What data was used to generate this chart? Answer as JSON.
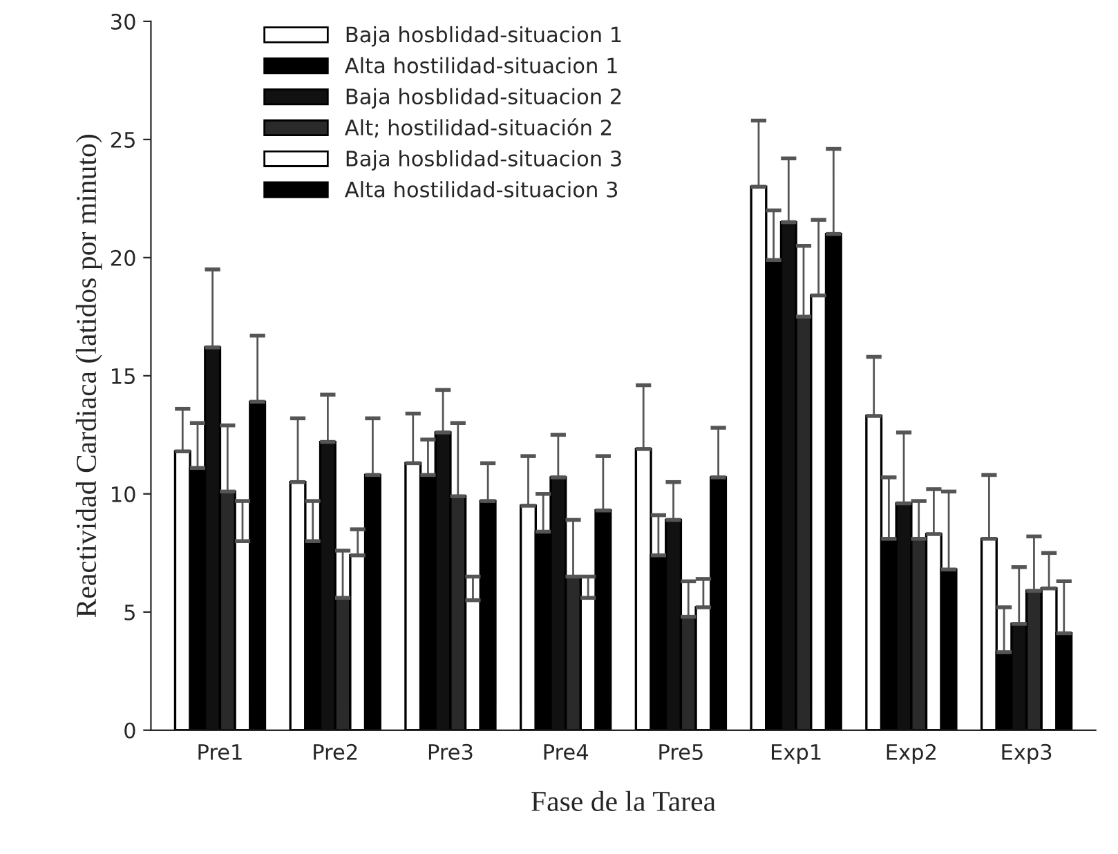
{
  "chart_data": {
    "type": "bar",
    "xlabel": "Fase de la Tarea",
    "ylabel": "Reactividad Cardiaca (latidos por minuto)",
    "categories": [
      "Pre1",
      "Pre2",
      "Pre3",
      "Pre4",
      "Pre5",
      "Exp1",
      "Exp2",
      "Exp3"
    ],
    "ylim": [
      0,
      30
    ],
    "yticks": [
      0,
      5,
      10,
      15,
      20,
      25,
      30
    ],
    "grid": false,
    "legend": "top left",
    "series": [
      {
        "name": "Baja hosblidad-situacion 1",
        "color": "#ffffff",
        "values": [
          11.8,
          10.5,
          11.3,
          9.5,
          11.9,
          23.0,
          13.3,
          8.1
        ],
        "errors": [
          [
            11.8,
            13.6
          ],
          [
            10.5,
            13.2
          ],
          [
            11.3,
            13.4
          ],
          [
            9.5,
            11.6
          ],
          [
            11.9,
            14.6
          ],
          [
            23.0,
            25.8
          ],
          [
            13.3,
            15.8
          ],
          [
            8.1,
            10.8
          ]
        ]
      },
      {
        "name": "Alta hostilidad-situacion 1",
        "color": "#000000",
        "values": [
          11.1,
          8.0,
          10.8,
          8.4,
          7.4,
          19.9,
          8.1,
          3.3
        ],
        "errors": [
          [
            11.1,
            13.0
          ],
          [
            8.0,
            9.7
          ],
          [
            10.8,
            12.3
          ],
          [
            8.4,
            10.0
          ],
          [
            7.4,
            9.1
          ],
          [
            19.9,
            22.0
          ],
          [
            8.1,
            10.7
          ],
          [
            3.3,
            5.2
          ]
        ]
      },
      {
        "name": "Baja hosblidad-situacion 2",
        "color": "#111111",
        "values": [
          16.2,
          12.2,
          12.6,
          10.7,
          8.9,
          21.5,
          9.6,
          4.5
        ],
        "errors": [
          [
            16.2,
            19.5
          ],
          [
            12.2,
            14.2
          ],
          [
            12.6,
            14.4
          ],
          [
            10.7,
            12.5
          ],
          [
            8.9,
            10.5
          ],
          [
            21.5,
            24.2
          ],
          [
            9.6,
            12.6
          ],
          [
            4.5,
            6.9
          ]
        ]
      },
      {
        "name": "Alt; hostilidad-situación 2",
        "color": "#2a2a2a",
        "values": [
          10.1,
          5.6,
          9.9,
          6.5,
          4.8,
          17.5,
          8.1,
          5.9
        ],
        "errors": [
          [
            10.1,
            12.9
          ],
          [
            5.6,
            7.6
          ],
          [
            9.9,
            13.0
          ],
          [
            6.5,
            8.9
          ],
          [
            4.8,
            6.3
          ],
          [
            17.5,
            20.5
          ],
          [
            8.1,
            9.7
          ],
          [
            5.9,
            8.2
          ]
        ]
      },
      {
        "name": "Baja hosblidad-situacion 3",
        "color": "#ffffff",
        "values": [
          8.0,
          7.4,
          5.5,
          5.6,
          5.2,
          18.4,
          8.3,
          6.0
        ],
        "errors": [
          [
            8.0,
            9.7
          ],
          [
            7.4,
            8.5
          ],
          [
            5.5,
            6.5
          ],
          [
            5.6,
            6.5
          ],
          [
            5.2,
            6.4
          ],
          [
            18.4,
            21.6
          ],
          [
            8.3,
            10.2
          ],
          [
            6.0,
            7.5
          ]
        ]
      },
      {
        "name": "Alta hostilidad-situacion 3",
        "color": "#000000",
        "values": [
          13.9,
          10.8,
          9.7,
          9.3,
          10.7,
          21.0,
          6.8,
          4.1
        ],
        "errors": [
          [
            13.9,
            16.7
          ],
          [
            10.8,
            13.2
          ],
          [
            9.7,
            11.3
          ],
          [
            9.3,
            11.6
          ],
          [
            10.7,
            12.8
          ],
          [
            21.0,
            24.6
          ],
          [
            6.8,
            10.1
          ],
          [
            4.1,
            6.3
          ]
        ]
      }
    ]
  }
}
